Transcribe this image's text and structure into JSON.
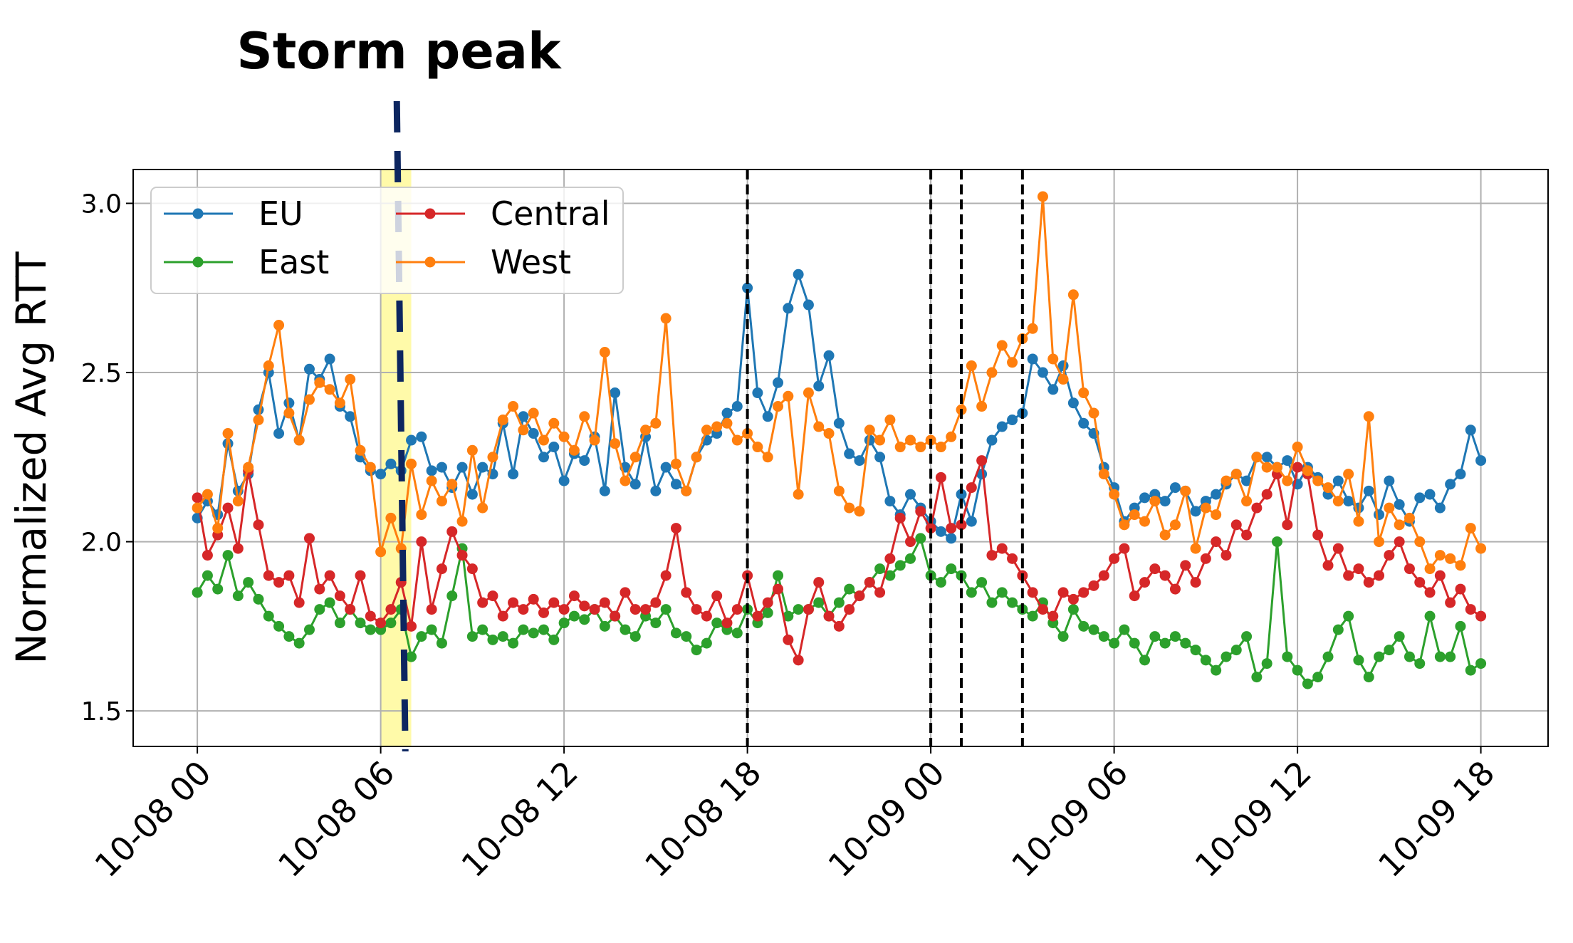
{
  "chart_data": {
    "type": "line",
    "annotation_title": "Storm peak",
    "xlabel": "",
    "ylabel": "Normalized Avg RTT",
    "x_start": "10-08 00:00",
    "interval_minutes": 20,
    "xlim_hours": [
      -2.1,
      44.2
    ],
    "ylim": [
      1.395,
      3.1
    ],
    "yticks": [
      1.5,
      2.0,
      2.5,
      3.0
    ],
    "ytick_labels": [
      "1.5",
      "2.0",
      "2.5",
      "3.0"
    ],
    "xticks_hours": [
      0,
      6,
      12,
      18,
      24,
      30,
      36,
      42
    ],
    "xtick_labels": [
      "10-08 00",
      "10-08 06",
      "10-08 12",
      "10-08 18",
      "10-09 00",
      "10-09 06",
      "10-09 12",
      "10-09 18"
    ],
    "grid": true,
    "legend_placement": "top-left",
    "highlight_band": {
      "start": "10-08 06:00",
      "end": "10-08 07:00",
      "color": "#fffaa0"
    },
    "storm_peak_line": {
      "time": "10-08 06:40",
      "color": "#0d2660"
    },
    "event_lines": [
      "10-08 18:00",
      "10-09 00:00",
      "10-09 01:00",
      "10-09 03:00"
    ],
    "series": [
      {
        "name": "EU",
        "color": "#1f77b4",
        "values": [
          2.07,
          2.12,
          2.08,
          2.29,
          2.15,
          2.2,
          2.39,
          2.5,
          2.32,
          2.41,
          2.3,
          2.51,
          2.48,
          2.54,
          2.4,
          2.37,
          2.25,
          2.21,
          2.2,
          2.23,
          2.21,
          2.3,
          2.31,
          2.21,
          2.22,
          2.16,
          2.22,
          2.14,
          2.22,
          2.2,
          2.35,
          2.2,
          2.37,
          2.32,
          2.25,
          2.28,
          2.18,
          2.26,
          2.24,
          2.31,
          2.15,
          2.44,
          2.22,
          2.17,
          2.31,
          2.15,
          2.22,
          2.17,
          2.15,
          2.25,
          2.3,
          2.32,
          2.38,
          2.4,
          2.75,
          2.44,
          2.37,
          2.47,
          2.69,
          2.79,
          2.7,
          2.46,
          2.55,
          2.35,
          2.26,
          2.24,
          2.3,
          2.25,
          2.12,
          2.08,
          2.14,
          2.1,
          2.06,
          2.03,
          2.01,
          2.14,
          2.06,
          2.2,
          2.3,
          2.34,
          2.36,
          2.38,
          2.54,
          2.5,
          2.45,
          2.52,
          2.41,
          2.35,
          2.32,
          2.22,
          2.16,
          2.06,
          2.1,
          2.13,
          2.14,
          2.12,
          2.16,
          2.15,
          2.09,
          2.12,
          2.14,
          2.17,
          2.2,
          2.18,
          2.25,
          2.25,
          2.22,
          2.24,
          2.17,
          2.22,
          2.19,
          2.14,
          2.18,
          2.12,
          2.1,
          2.15,
          2.08,
          2.18,
          2.11,
          2.06,
          2.13,
          2.14,
          2.1,
          2.17,
          2.2,
          2.33,
          2.24
        ]
      },
      {
        "name": "East",
        "color": "#2ca02c",
        "values": [
          1.85,
          1.9,
          1.86,
          1.96,
          1.84,
          1.88,
          1.83,
          1.78,
          1.75,
          1.72,
          1.7,
          1.74,
          1.8,
          1.82,
          1.76,
          1.8,
          1.76,
          1.74,
          1.74,
          1.76,
          1.8,
          1.66,
          1.72,
          1.74,
          1.7,
          1.84,
          1.98,
          1.72,
          1.74,
          1.71,
          1.72,
          1.7,
          1.74,
          1.73,
          1.74,
          1.71,
          1.76,
          1.78,
          1.77,
          1.8,
          1.75,
          1.78,
          1.74,
          1.72,
          1.78,
          1.76,
          1.8,
          1.73,
          1.72,
          1.68,
          1.7,
          1.76,
          1.74,
          1.73,
          1.8,
          1.76,
          1.79,
          1.9,
          1.78,
          1.8,
          1.8,
          1.82,
          1.78,
          1.82,
          1.86,
          1.84,
          1.88,
          1.92,
          1.9,
          1.93,
          1.95,
          2.01,
          1.9,
          1.88,
          1.92,
          1.9,
          1.85,
          1.88,
          1.82,
          1.85,
          1.82,
          1.8,
          1.78,
          1.82,
          1.76,
          1.72,
          1.8,
          1.75,
          1.74,
          1.72,
          1.7,
          1.74,
          1.7,
          1.65,
          1.72,
          1.7,
          1.72,
          1.7,
          1.68,
          1.65,
          1.62,
          1.66,
          1.68,
          1.72,
          1.6,
          1.64,
          2.0,
          1.66,
          1.62,
          1.58,
          1.6,
          1.66,
          1.74,
          1.78,
          1.65,
          1.6,
          1.66,
          1.68,
          1.72,
          1.66,
          1.64,
          1.78,
          1.66,
          1.66,
          1.75,
          1.62,
          1.64
        ]
      },
      {
        "name": "Central",
        "color": "#d62728",
        "values": [
          2.13,
          1.96,
          2.02,
          2.1,
          1.98,
          2.21,
          2.05,
          1.9,
          1.88,
          1.9,
          1.82,
          2.01,
          1.86,
          1.9,
          1.84,
          1.8,
          1.9,
          1.78,
          1.76,
          1.8,
          1.88,
          1.75,
          2.0,
          1.8,
          1.92,
          2.03,
          1.96,
          1.92,
          1.82,
          1.84,
          1.78,
          1.82,
          1.8,
          1.83,
          1.79,
          1.82,
          1.8,
          1.84,
          1.81,
          1.8,
          1.82,
          1.78,
          1.85,
          1.8,
          1.8,
          1.82,
          1.9,
          2.04,
          1.85,
          1.8,
          1.78,
          1.84,
          1.76,
          1.8,
          1.9,
          1.78,
          1.82,
          1.86,
          1.71,
          1.65,
          1.8,
          1.88,
          1.78,
          1.75,
          1.8,
          1.84,
          1.88,
          1.85,
          1.95,
          2.07,
          2.0,
          2.09,
          2.04,
          2.19,
          2.04,
          2.05,
          2.16,
          2.24,
          1.96,
          1.98,
          1.95,
          1.9,
          1.85,
          1.8,
          1.78,
          1.85,
          1.83,
          1.85,
          1.87,
          1.9,
          1.95,
          1.98,
          1.84,
          1.88,
          1.92,
          1.9,
          1.86,
          1.93,
          1.88,
          1.95,
          2.0,
          1.96,
          2.05,
          2.02,
          2.1,
          2.14,
          2.2,
          2.05,
          2.22,
          2.2,
          2.02,
          1.93,
          1.98,
          1.9,
          1.92,
          1.88,
          1.9,
          1.96,
          2.0,
          1.92,
          1.88,
          1.85,
          1.9,
          1.82,
          1.86,
          1.8,
          1.78
        ]
      },
      {
        "name": "West",
        "color": "#ff7f0e",
        "values": [
          2.1,
          2.14,
          2.04,
          2.32,
          2.12,
          2.22,
          2.36,
          2.52,
          2.64,
          2.38,
          2.3,
          2.42,
          2.47,
          2.45,
          2.41,
          2.48,
          2.27,
          2.22,
          1.97,
          2.07,
          1.98,
          2.23,
          2.08,
          2.18,
          2.12,
          2.17,
          2.06,
          2.27,
          2.1,
          2.25,
          2.36,
          2.4,
          2.33,
          2.38,
          2.3,
          2.35,
          2.31,
          2.27,
          2.37,
          2.3,
          2.56,
          2.29,
          2.18,
          2.25,
          2.33,
          2.35,
          2.66,
          2.23,
          2.15,
          2.25,
          2.33,
          2.34,
          2.35,
          2.3,
          2.32,
          2.28,
          2.25,
          2.4,
          2.43,
          2.14,
          2.44,
          2.34,
          2.32,
          2.15,
          2.1,
          2.09,
          2.33,
          2.3,
          2.36,
          2.28,
          2.3,
          2.28,
          2.3,
          2.28,
          2.31,
          2.39,
          2.52,
          2.4,
          2.5,
          2.58,
          2.53,
          2.6,
          2.63,
          3.02,
          2.54,
          2.48,
          2.73,
          2.44,
          2.38,
          2.2,
          2.14,
          2.05,
          2.08,
          2.06,
          2.12,
          2.02,
          2.05,
          2.15,
          1.98,
          2.1,
          2.08,
          2.18,
          2.2,
          2.12,
          2.25,
          2.22,
          2.22,
          2.18,
          2.28,
          2.21,
          2.18,
          2.16,
          2.12,
          2.2,
          2.06,
          2.37,
          2.0,
          2.1,
          2.05,
          2.07,
          2.0,
          1.92,
          1.96,
          1.95,
          1.93,
          2.04,
          1.98
        ]
      }
    ]
  }
}
